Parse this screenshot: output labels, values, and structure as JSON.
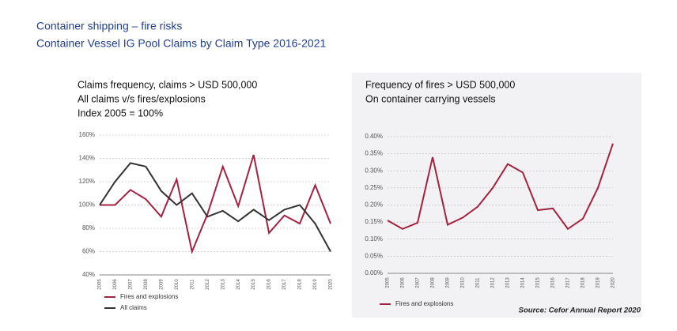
{
  "header": {
    "title": "Container shipping – fire risks",
    "subtitle": "Container Vessel IG Pool Claims by Claim Type 2016-2021"
  },
  "source": "Source: Cefor Annual Report 2020",
  "chart_data": [
    {
      "type": "line",
      "title": [
        "Claims frequency, claims > USD 500,000",
        "All claims v/s fires/explosions",
        "Index 2005 = 100%"
      ],
      "categories": [
        "2005",
        "2006",
        "2007",
        "2008",
        "2009",
        "2010",
        "2011",
        "2012",
        "2013",
        "2014",
        "2015",
        "2016",
        "2017",
        "2018",
        "2019",
        "2020"
      ],
      "series": [
        {
          "name": "Fires and explosions",
          "color": "#a3223f",
          "values": [
            100,
            100,
            113,
            105,
            90,
            122,
            60,
            92,
            133,
            99,
            143,
            76,
            91,
            84,
            117,
            84
          ]
        },
        {
          "name": "All claims",
          "color": "#333333",
          "values": [
            100,
            120,
            136,
            133,
            112,
            100,
            110,
            90,
            95,
            86,
            96,
            87,
            96,
            100,
            84,
            60
          ]
        }
      ],
      "ylim": [
        40,
        160
      ],
      "yticks": [
        {
          "value": 40,
          "label": "40%"
        },
        {
          "value": 60,
          "label": "60%"
        },
        {
          "value": 80,
          "label": "80%"
        },
        {
          "value": 100,
          "label": "100%"
        },
        {
          "value": 120,
          "label": "120%"
        },
        {
          "value": 140,
          "label": "140%"
        },
        {
          "value": 160,
          "label": "160%"
        }
      ],
      "grid": true
    },
    {
      "type": "line",
      "title": [
        "Frequency of fires > USD 500,000",
        "On container carrying vessels"
      ],
      "categories": [
        "2005",
        "2006",
        "2007",
        "2008",
        "2009",
        "2010",
        "2011",
        "2012",
        "2013",
        "2014",
        "2015",
        "2016",
        "2017",
        "2018",
        "2019",
        "2020"
      ],
      "series": [
        {
          "name": "Fires and explosions",
          "color": "#a3223f",
          "values": [
            0.155,
            0.13,
            0.148,
            0.34,
            0.142,
            0.163,
            0.195,
            0.25,
            0.32,
            0.295,
            0.185,
            0.19,
            0.13,
            0.16,
            0.25,
            0.38
          ]
        }
      ],
      "ylim": [
        0,
        0.4
      ],
      "yticks": [
        {
          "value": 0,
          "label": "0.00%"
        },
        {
          "value": 0.05,
          "label": "0.05%"
        },
        {
          "value": 0.1,
          "label": "0.10%"
        },
        {
          "value": 0.15,
          "label": "0.15%"
        },
        {
          "value": 0.2,
          "label": "0.20%"
        },
        {
          "value": 0.25,
          "label": "0.25%"
        },
        {
          "value": 0.3,
          "label": "0.30%"
        },
        {
          "value": 0.35,
          "label": "0.35%"
        },
        {
          "value": 0.4,
          "label": "0.40%"
        }
      ],
      "grid": true
    }
  ]
}
